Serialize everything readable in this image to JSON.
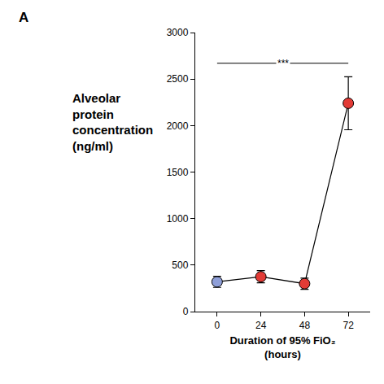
{
  "chart_data": {
    "type": "scatter",
    "panel_label": "A",
    "x_label": [
      "Duration of 95% FiO₂",
      "(hours)"
    ],
    "y_label": [
      "Alveolar",
      "protein",
      "concentration",
      "(ng/ml)"
    ],
    "x": [
      0,
      24,
      48,
      72
    ],
    "values": [
      320,
      375,
      300,
      2240
    ],
    "errors": [
      60,
      65,
      60,
      285
    ],
    "colors": [
      "#8f9fd8",
      "#e23b36",
      "#e23b36",
      "#e23b36"
    ],
    "marker": "circle",
    "line_style": "solid",
    "xlim": [
      -12,
      84
    ],
    "xticks": [
      0,
      24,
      48,
      72
    ],
    "ylim": [
      0,
      3000
    ],
    "yticks": [
      0,
      500,
      1000,
      1500,
      2000,
      2500,
      3000
    ],
    "grid": false,
    "annotations": [
      {
        "text": "***",
        "x_from": 0,
        "x_to": 72,
        "y": 2670
      }
    ]
  }
}
